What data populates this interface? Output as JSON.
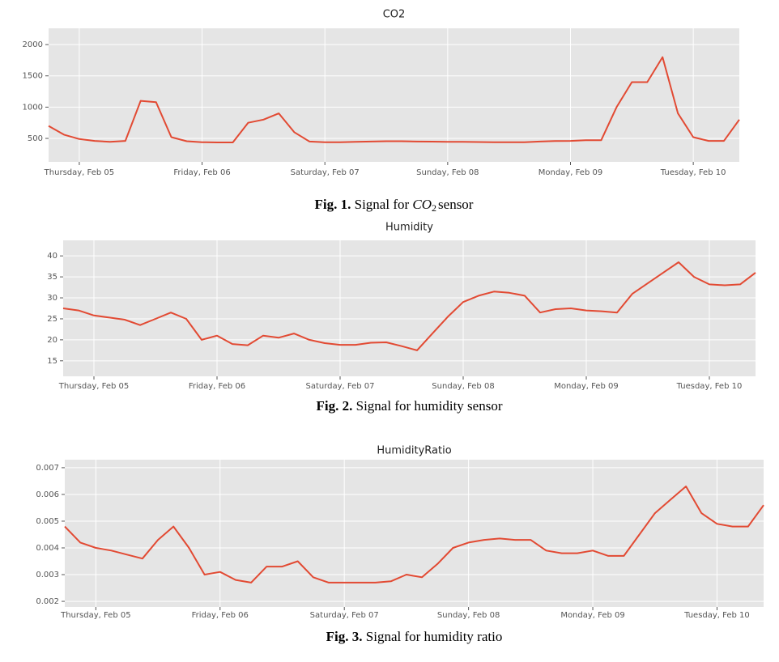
{
  "chart_data": [
    {
      "type": "line",
      "title": "CO2",
      "categories": [
        null,
        null,
        "Thursday, Feb 05",
        null,
        null,
        null,
        null,
        null,
        null,
        null,
        "Friday, Feb 06",
        null,
        null,
        null,
        null,
        null,
        null,
        null,
        "Saturday, Feb 07",
        null,
        null,
        null,
        null,
        null,
        null,
        null,
        "Sunday, Feb 08",
        null,
        null,
        null,
        null,
        null,
        null,
        null,
        "Monday, Feb 09",
        null,
        null,
        null,
        null,
        null,
        null,
        null,
        "Tuesday, Feb 10",
        null,
        null,
        null
      ],
      "series": [
        {
          "name": "CO2",
          "color": "#e24a33",
          "values": [
            700,
            560,
            490,
            460,
            445,
            460,
            1100,
            1080,
            520,
            455,
            440,
            435,
            435,
            750,
            800,
            900,
            600,
            450,
            440,
            440,
            445,
            450,
            455,
            455,
            450,
            448,
            445,
            445,
            442,
            440,
            438,
            440,
            450,
            458,
            460,
            470,
            470,
            1000,
            1400,
            1400,
            1800,
            900,
            520,
            460,
            460,
            800
          ]
        }
      ],
      "ylim": [
        125,
        2260
      ],
      "yticks": [
        500,
        1000,
        1500,
        2000
      ],
      "grid": true,
      "caption": {
        "label": "Fig. 1.",
        "text": [
          "Signal for ",
          "CO",
          "2",
          "sensor"
        ]
      }
    },
    {
      "type": "line",
      "title": "Humidity",
      "categories": [
        null,
        null,
        "Thursday, Feb 05",
        null,
        null,
        null,
        null,
        null,
        null,
        null,
        "Friday, Feb 06",
        null,
        null,
        null,
        null,
        null,
        null,
        null,
        "Saturday, Feb 07",
        null,
        null,
        null,
        null,
        null,
        null,
        null,
        "Sunday, Feb 08",
        null,
        null,
        null,
        null,
        null,
        null,
        null,
        "Monday, Feb 09",
        null,
        null,
        null,
        null,
        null,
        null,
        null,
        "Tuesday, Feb 10",
        null,
        null,
        null
      ],
      "series": [
        {
          "name": "Humidity",
          "color": "#e24a33",
          "values": [
            27.5,
            27,
            25.8,
            25.3,
            24.8,
            23.5,
            25,
            26.5,
            25,
            20,
            21,
            19,
            18.7,
            21,
            20.5,
            21.5,
            20,
            19.2,
            18.8,
            18.8,
            19.3,
            19.4,
            18.5,
            17.5,
            21.5,
            25.5,
            29,
            30.5,
            31.5,
            31.2,
            30.5,
            26.5,
            27.3,
            27.5,
            27,
            26.8,
            26.5,
            31,
            33.5,
            36,
            38.5,
            35,
            33.2,
            33,
            33.2,
            36
          ]
        }
      ],
      "ylim": [
        11.3,
        43.7
      ],
      "yticks": [
        15,
        20,
        25,
        30,
        35,
        40
      ],
      "grid": true,
      "caption": {
        "label": "Fig. 2.",
        "text": [
          "Signal for humidity sensor"
        ]
      }
    },
    {
      "type": "line",
      "title": "HumidityRatio",
      "categories": [
        null,
        null,
        "Thursday, Feb 05",
        null,
        null,
        null,
        null,
        null,
        null,
        null,
        "Friday, Feb 06",
        null,
        null,
        null,
        null,
        null,
        null,
        null,
        "Saturday, Feb 07",
        null,
        null,
        null,
        null,
        null,
        null,
        null,
        "Sunday, Feb 08",
        null,
        null,
        null,
        null,
        null,
        null,
        null,
        "Monday, Feb 09",
        null,
        null,
        null,
        null,
        null,
        null,
        null,
        "Tuesday, Feb 10",
        null,
        null,
        null
      ],
      "series": [
        {
          "name": "HumidityRatio",
          "color": "#e24a33",
          "values": [
            0.0048,
            0.0042,
            0.004,
            0.0039,
            0.00375,
            0.0036,
            0.0043,
            0.0048,
            0.004,
            0.003,
            0.0031,
            0.0028,
            0.0027,
            0.0033,
            0.0033,
            0.0035,
            0.0029,
            0.0027,
            0.0027,
            0.0027,
            0.0027,
            0.00275,
            0.003,
            0.0029,
            0.0034,
            0.004,
            0.0042,
            0.0043,
            0.00435,
            0.0043,
            0.0043,
            0.0039,
            0.0038,
            0.0038,
            0.0039,
            0.0037,
            0.0037,
            0.0045,
            0.0053,
            0.0058,
            0.0063,
            0.0053,
            0.0049,
            0.0048,
            0.0048,
            0.0056
          ]
        }
      ],
      "ylim": [
        0.00179,
        0.0073
      ],
      "yticks": [
        0.002,
        0.003,
        0.004,
        0.005,
        0.006,
        0.007
      ],
      "grid": true,
      "caption": {
        "label": "Fig. 3.",
        "text": [
          "Signal for humidity ratio"
        ]
      }
    }
  ]
}
